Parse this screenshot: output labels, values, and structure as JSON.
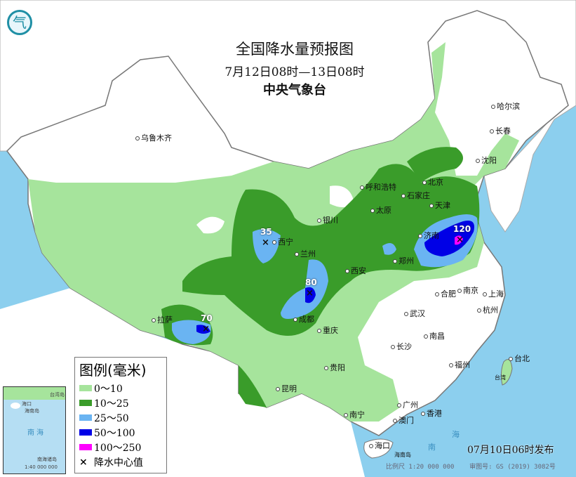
{
  "title": "全国降水量预报图",
  "period": "7月12日08时—13日08时",
  "agency": "中央气象台",
  "issued": "07月10日06时发布",
  "scale": "比例尺 1:20 000 000",
  "map_number": "审图号: GS (2019) 3082号",
  "legend": {
    "title": "图例(毫米)",
    "items": [
      {
        "label": "0～10",
        "color": "#a6e49c"
      },
      {
        "label": "10～25",
        "color": "#3a9c2a"
      },
      {
        "label": "25～50",
        "color": "#6ab4f2"
      },
      {
        "label": "50～100",
        "color": "#0000e6"
      },
      {
        "label": "100～250",
        "color": "#ff00ff"
      }
    ],
    "center_label": "降水中心值",
    "center_symbol": "×"
  },
  "colors": {
    "sea": "#8ccfee",
    "land": "#ffffff"
  },
  "centers": [
    {
      "value": "35",
      "near": "西宁"
    },
    {
      "value": "80",
      "near": "成都"
    },
    {
      "value": "120",
      "near": "济南"
    },
    {
      "value": "70",
      "near": "拉萨"
    }
  ],
  "cities": [
    "乌鲁木齐",
    "哈尔滨",
    "长春",
    "沈阳",
    "呼和浩特",
    "北京",
    "天津",
    "石家庄",
    "太原",
    "银川",
    "西宁",
    "兰州",
    "济南",
    "郑州",
    "西安",
    "合肥",
    "南京",
    "上海",
    "杭州",
    "武汉",
    "成都",
    "重庆",
    "拉萨",
    "长沙",
    "南昌",
    "福州",
    "台北",
    "贵阳",
    "昆明",
    "南宁",
    "广州",
    "澳门",
    "香港",
    "海口"
  ],
  "places": {
    "taiwan": "台湾",
    "hainan": "海南岛",
    "south_sea": "南",
    "south_sea2": "海"
  },
  "inset": {
    "south_sea": "南 海",
    "islands": "南海诸岛",
    "scale": "1:40 000 000",
    "haikou": "海口",
    "hainan": "海南岛",
    "taiwan": "台湾岛"
  },
  "logo_icon": "cma-logo-icon"
}
